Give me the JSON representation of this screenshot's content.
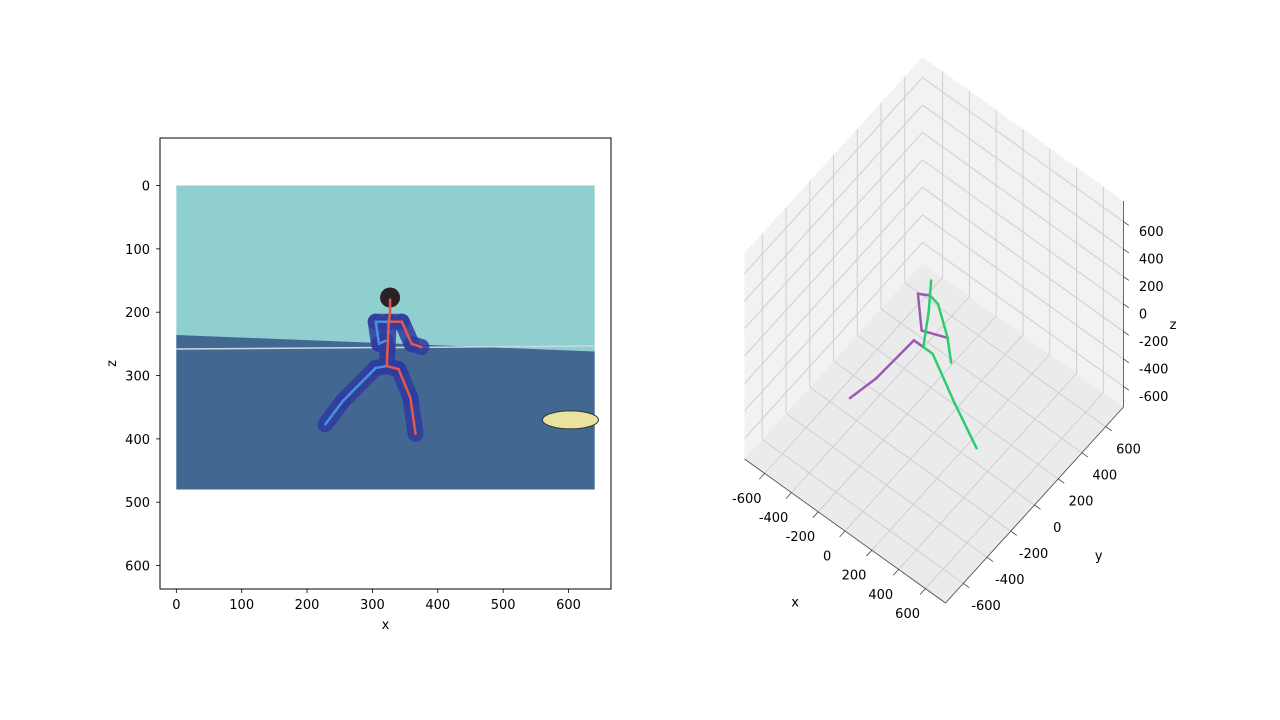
{
  "chart_data": [
    {
      "type": "image-with-2d-skeleton",
      "xlabel": "x",
      "ylabel": "z",
      "xlim": [
        -25,
        665
      ],
      "ylim": [
        637,
        -75
      ],
      "xticks": [
        0,
        100,
        200,
        300,
        400,
        500,
        600
      ],
      "yticks": [
        0,
        100,
        200,
        300,
        400,
        500,
        600
      ],
      "image_extent": {
        "x": [
          0,
          640
        ],
        "y": [
          0,
          480
        ]
      },
      "background": {
        "wall_color": "#8fcfd0",
        "floor_color": "#426892",
        "floor_line_z": 255,
        "floor_top_left": 236,
        "floor_top_right": 262
      },
      "colors": {
        "left": "#4a90e0",
        "right": "#e8584a",
        "spine": "#e8584a"
      },
      "skeleton_2d": {
        "joints": {
          "head": [
            327,
            180
          ],
          "neck": [
            327,
            200
          ],
          "thorax": [
            325,
            215
          ],
          "spine": [
            323,
            260
          ],
          "pelvis": [
            322,
            285
          ],
          "l_hip": [
            305,
            288
          ],
          "l_knee": [
            255,
            340
          ],
          "l_ankle": [
            228,
            377
          ],
          "r_hip": [
            340,
            290
          ],
          "r_knee": [
            358,
            335
          ],
          "r_ankle": [
            366,
            392
          ],
          "l_shoulder": [
            305,
            215
          ],
          "l_elbow": [
            310,
            250
          ],
          "l_wrist": [
            320,
            245
          ],
          "r_shoulder": [
            345,
            215
          ],
          "r_elbow": [
            360,
            250
          ],
          "r_wrist": [
            375,
            255
          ]
        },
        "left_bones": [
          [
            "pelvis",
            "l_hip"
          ],
          [
            "l_hip",
            "l_knee"
          ],
          [
            "l_knee",
            "l_ankle"
          ],
          [
            "thorax",
            "l_shoulder"
          ],
          [
            "l_shoulder",
            "l_elbow"
          ],
          [
            "l_elbow",
            "l_wrist"
          ]
        ],
        "right_bones": [
          [
            "pelvis",
            "r_hip"
          ],
          [
            "r_hip",
            "r_knee"
          ],
          [
            "r_knee",
            "r_ankle"
          ],
          [
            "thorax",
            "r_shoulder"
          ],
          [
            "r_shoulder",
            "r_elbow"
          ],
          [
            "r_elbow",
            "r_wrist"
          ],
          [
            "pelvis",
            "spine"
          ],
          [
            "spine",
            "thorax"
          ],
          [
            "thorax",
            "neck"
          ],
          [
            "neck",
            "head"
          ]
        ]
      }
    },
    {
      "type": "3d-skeleton",
      "xlabel": "x",
      "ylabel": "y",
      "zlabel": "z",
      "xlim": [
        -750,
        750
      ],
      "ylim": [
        -750,
        750
      ],
      "zlim": [
        -750,
        750
      ],
      "xticks": [
        -600,
        -400,
        -200,
        0,
        200,
        400,
        600
      ],
      "yticks": [
        -600,
        -400,
        -200,
        0,
        200,
        400,
        600
      ],
      "zticks": [
        -600,
        -400,
        -200,
        0,
        200,
        400,
        600
      ],
      "grid": true,
      "colors": {
        "left": "#9b59b6",
        "right": "#2ecc71"
      },
      "skeleton_3d": {
        "joints": {
          "pelvis": [
            -80,
            0,
            -180
          ],
          "r_hip": [
            -10,
            0,
            -180
          ],
          "r_knee": [
            150,
            0,
            -420
          ],
          "r_ankle": [
            300,
            20,
            -670
          ],
          "l_hip": [
            -150,
            0,
            -180
          ],
          "l_knee": [
            -300,
            -150,
            -420
          ],
          "l_ankle": [
            -450,
            -200,
            -620
          ],
          "spine": [
            -40,
            0,
            100
          ],
          "thorax": [
            -30,
            0,
            230
          ],
          "neck": [
            -30,
            10,
            330
          ],
          "r_shoulder": [
            30,
            0,
            210
          ],
          "r_elbow": [
            100,
            0,
            20
          ],
          "r_wrist": [
            110,
            20,
            -180
          ],
          "l_shoulder": [
            -120,
            0,
            180
          ],
          "l_elbow": [
            -110,
            20,
            -100
          ],
          "l_wrist": [
            50,
            60,
            -80
          ]
        },
        "left_bones": [
          [
            "pelvis",
            "l_hip"
          ],
          [
            "l_hip",
            "l_knee"
          ],
          [
            "l_knee",
            "l_ankle"
          ],
          [
            "thorax",
            "l_shoulder"
          ],
          [
            "l_shoulder",
            "l_elbow"
          ],
          [
            "l_elbow",
            "l_wrist"
          ]
        ],
        "right_bones": [
          [
            "pelvis",
            "r_hip"
          ],
          [
            "r_hip",
            "r_knee"
          ],
          [
            "r_knee",
            "r_ankle"
          ],
          [
            "thorax",
            "r_shoulder"
          ],
          [
            "r_shoulder",
            "r_elbow"
          ],
          [
            "r_elbow",
            "r_wrist"
          ],
          [
            "pelvis",
            "spine"
          ],
          [
            "spine",
            "thorax"
          ],
          [
            "thorax",
            "neck"
          ]
        ]
      }
    }
  ]
}
